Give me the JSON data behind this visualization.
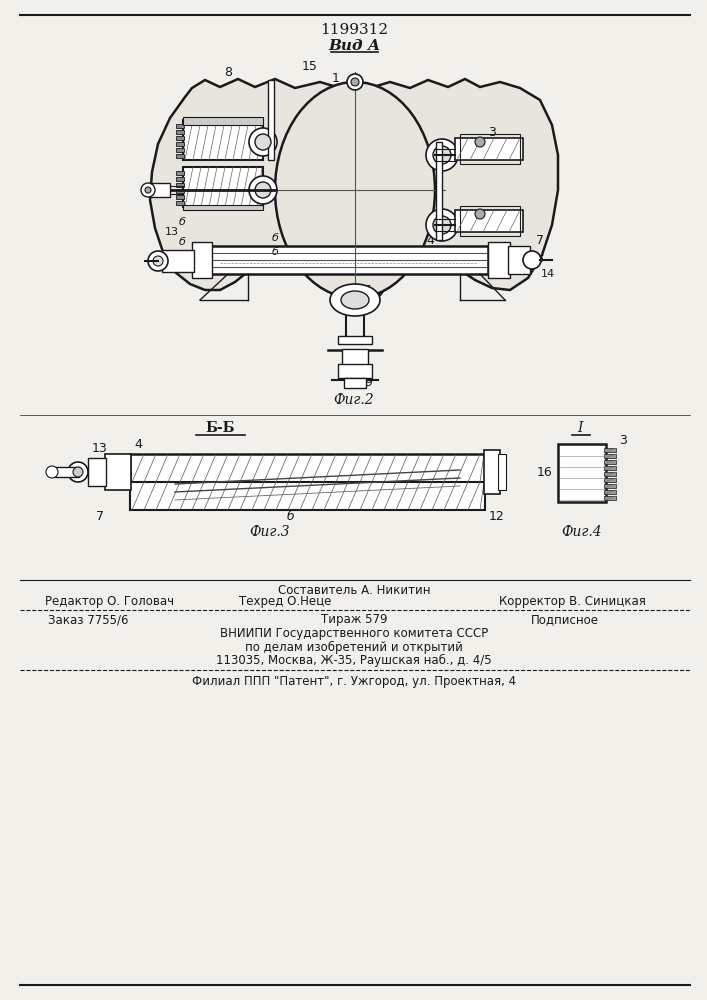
{
  "patent_number": "1199312",
  "view_label": "Вид А",
  "fig2_label": "Фиг.2",
  "fig3_label": "Фиг.3",
  "fig4_label": "Фиг.4",
  "section_label": "Б-Б",
  "section_label2": "I",
  "footer_line1_left": "Редактор О. Головач",
  "footer_line1_center": "Техред О.Неце",
  "footer_line1_center_top": "Составитель А. Никитин",
  "footer_line1_right": "Корректор В. Синицкая",
  "footer_line2_left": "Заказ 7755/6",
  "footer_line2_center": "Тираж 579",
  "footer_line2_right": "Подписное",
  "footer_line3": "ВНИИПИ Государственного комитета СССР",
  "footer_line4": "по делам изобретений и открытий",
  "footer_line5": "113035, Москва, Ж-35, Раушская наб., д. 4/5",
  "footer_line6": "Филиал ППП \"Патент\", г. Ужгород, ул. Проектная, 4",
  "bg_color": "#f2f0eb",
  "line_color": "#1a1a1a"
}
